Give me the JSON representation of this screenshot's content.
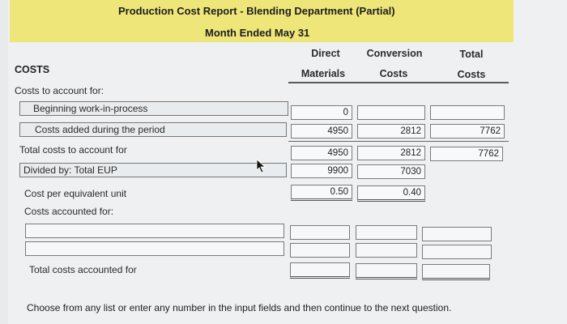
{
  "header": {
    "title": "Production Cost Report - Blending Department (Partial)",
    "subtitle": "Month Ended May 31"
  },
  "columns": {
    "direct_line1": "Direct",
    "direct_line2": "Materials",
    "conversion_line1": "Conversion",
    "conversion_line2": "Costs",
    "total_line1": "Total",
    "total_line2": "Costs"
  },
  "sections": {
    "costs": "COSTS",
    "costs_to_account_for": "Costs to account for:",
    "costs_accounted_for": "Costs accounted for:"
  },
  "rows": {
    "beginning_wip": {
      "label": "Beginning work-in-process",
      "dm": "0",
      "cc": "",
      "total": ""
    },
    "costs_added": {
      "label": "Costs added during the period",
      "dm": "4950",
      "cc": "2812",
      "total": "7762"
    },
    "total_costs": {
      "label": "Total costs to account for",
      "dm": "4950",
      "cc": "2812",
      "total": "7762"
    },
    "divided_by": {
      "label": "Divided by: Total EUP",
      "dm": "9900",
      "cc": "7030"
    },
    "cost_per_eu": {
      "label": "Cost per equivalent unit",
      "dm": "0.50",
      "cc": "0.40"
    },
    "total_accounted": {
      "label": "Total costs accounted for"
    }
  },
  "footer": {
    "instruction": "Choose from any list or enter any number in the input fields and then continue to the next question."
  }
}
